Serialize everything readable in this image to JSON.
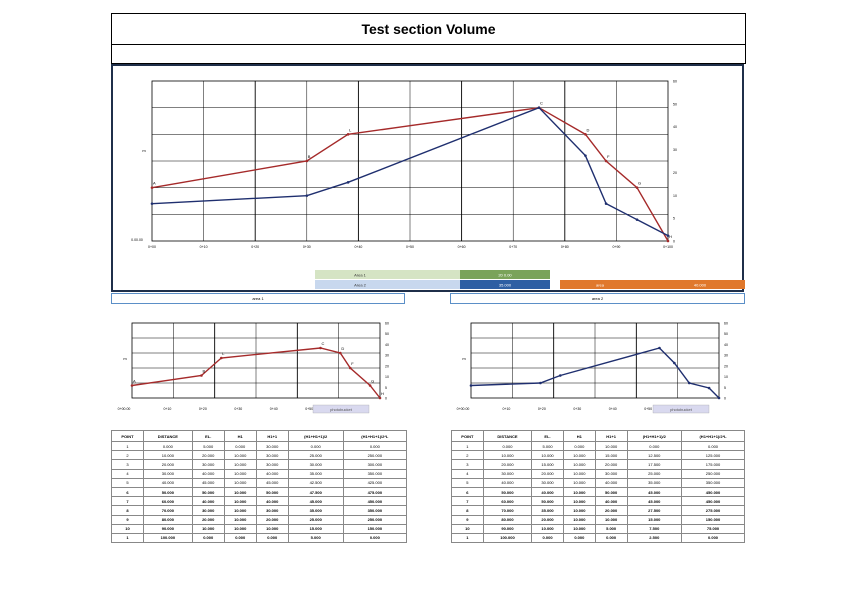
{
  "title": "Test section Volume",
  "main_chart": {
    "y_axis_label": "m",
    "y_left_bottom": "0.00.00",
    "x_ticks": [
      "0+00",
      "0+10",
      "0+20",
      "0+30",
      "0+40",
      "0+50",
      "0+60",
      "0+70",
      "0+80",
      "0+90",
      "0+100"
    ],
    "right_ticks": [
      "60",
      "50",
      "40",
      "30",
      "20",
      "10",
      "5",
      "0"
    ],
    "red_labels": [
      "A",
      "B",
      "L",
      "C",
      "D",
      "F",
      "G",
      "H",
      "I"
    ],
    "legend": [
      {
        "label": "Area 1",
        "value": "20 0.00",
        "color": "#7aa35a"
      },
      {
        "label": "Area 2",
        "value": "35.000",
        "color": "#2e5fa3"
      },
      {
        "label": "area",
        "value": "40.000",
        "color": "#e0782c"
      }
    ],
    "colors": {
      "red": "#a52a2a",
      "blue": "#1f2f6f"
    }
  },
  "area1_label": "area 1",
  "area2_label": "area 2",
  "small_tick_left": "0+00.00",
  "small_x_ticks": [
    "0+10",
    "0+20",
    "0+30",
    "0+40",
    "0+50",
    "0+60"
  ],
  "small_right_ticks": [
    "60",
    "50",
    "40",
    "30",
    "20",
    "10",
    "5",
    "0"
  ],
  "photo_tag": "photobucket",
  "table1": {
    "headers": [
      "POINT",
      "DISTANCE",
      "EL.",
      "H1",
      "H1+1",
      "(H1+H1+1)/2",
      "(H1+H1+1)/2*L"
    ],
    "rows": [
      [
        "1",
        "0.000",
        "5.000",
        "0.000",
        "30.000",
        "0.000",
        "0.000"
      ],
      [
        "2",
        "10.000",
        "20.000",
        "10.000",
        "30.000",
        "25.000",
        "250.000"
      ],
      [
        "3",
        "20.000",
        "30.000",
        "10.000",
        "30.000",
        "30.000",
        "300.000"
      ],
      [
        "4",
        "30.000",
        "40.000",
        "10.000",
        "40.000",
        "35.000",
        "350.000"
      ],
      [
        "5",
        "40.000",
        "45.000",
        "10.000",
        "45.000",
        "42.500",
        "425.000"
      ],
      [
        "6",
        "50.000",
        "50.000",
        "10.000",
        "50.000",
        "47.500",
        "475.000"
      ],
      [
        "7",
        "60.000",
        "40.000",
        "10.000",
        "40.000",
        "45.000",
        "450.000"
      ],
      [
        "8",
        "70.000",
        "30.000",
        "10.000",
        "30.000",
        "35.000",
        "350.000"
      ],
      [
        "9",
        "80.000",
        "20.000",
        "10.000",
        "20.000",
        "25.000",
        "250.000"
      ],
      [
        "10",
        "90.000",
        "10.000",
        "10.000",
        "10.000",
        "15.000",
        "150.000"
      ],
      [
        "1",
        "100.000",
        "0.000",
        "0.000",
        "0.000",
        "5.000",
        "0.000"
      ]
    ]
  },
  "table2": {
    "headers": [
      "POINT",
      "DISTANCE",
      "EL.",
      "H1",
      "H1+1",
      "(H1+H1+1)/2",
      "(H1+H1+1)/2*L"
    ],
    "rows": [
      [
        "1",
        "0.000",
        "5.000",
        "0.000",
        "10.000",
        "0.000",
        "0.000"
      ],
      [
        "2",
        "10.000",
        "10.000",
        "10.000",
        "15.000",
        "12.500",
        "125.000"
      ],
      [
        "3",
        "20.000",
        "15.000",
        "10.000",
        "20.000",
        "17.500",
        "175.000"
      ],
      [
        "4",
        "30.000",
        "20.000",
        "10.000",
        "30.000",
        "25.000",
        "250.000"
      ],
      [
        "5",
        "40.000",
        "30.000",
        "10.000",
        "40.000",
        "35.000",
        "350.000"
      ],
      [
        "6",
        "50.000",
        "40.000",
        "10.000",
        "50.000",
        "45.000",
        "450.000"
      ],
      [
        "7",
        "60.000",
        "50.000",
        "10.000",
        "40.000",
        "45.000",
        "450.000"
      ],
      [
        "8",
        "70.000",
        "35.000",
        "10.000",
        "20.000",
        "27.500",
        "275.000"
      ],
      [
        "9",
        "80.000",
        "20.000",
        "10.000",
        "10.000",
        "15.000",
        "150.000"
      ],
      [
        "10",
        "90.000",
        "10.000",
        "10.000",
        "5.000",
        "7.500",
        "75.000"
      ],
      [
        "1",
        "100.000",
        "0.000",
        "0.000",
        "0.000",
        "2.500",
        "0.000"
      ]
    ]
  },
  "chart_data": [
    {
      "type": "line",
      "x": [
        0,
        30,
        38,
        75,
        84,
        88,
        94,
        100
      ],
      "series": [
        {
          "values": [
            20,
            30,
            40,
            50,
            40,
            30,
            20,
            0
          ]
        },
        {
          "values": [
            14,
            17,
            22,
            50,
            32,
            14,
            8,
            2
          ]
        }
      ],
      "ylim": [
        0,
        60
      ]
    },
    {
      "type": "line",
      "x": [
        0,
        28,
        36,
        76,
        84,
        88,
        96,
        100
      ],
      "series": [
        {
          "values": [
            10,
            18,
            32,
            40,
            36,
            24,
            10,
            0
          ]
        }
      ],
      "ylim": [
        0,
        60
      ]
    },
    {
      "type": "line",
      "x": [
        0,
        28,
        36,
        76,
        82,
        88,
        96,
        100
      ],
      "series": [
        {
          "values": [
            10,
            12,
            18,
            40,
            28,
            12,
            8,
            0
          ]
        }
      ],
      "ylim": [
        0,
        60
      ]
    }
  ]
}
